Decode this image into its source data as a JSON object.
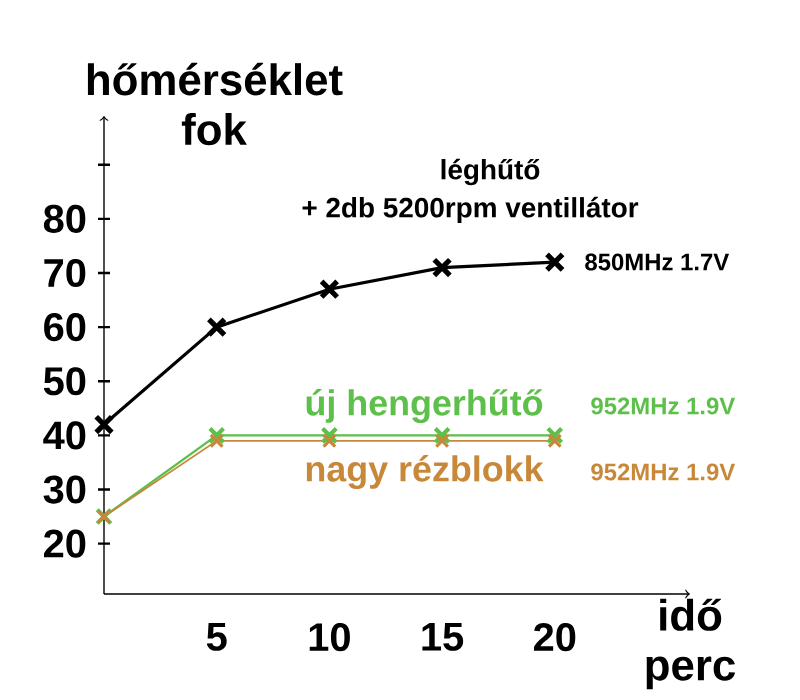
{
  "chart_data": {
    "type": "line",
    "xlabel": "idő perc",
    "ylabel": "hőmérséklet fok",
    "x": [
      0,
      5,
      10,
      15,
      20
    ],
    "xlim": [
      0,
      26
    ],
    "xticks": [
      5,
      10,
      15,
      20
    ],
    "ylim": [
      10.7,
      99
    ],
    "yticks": [
      20,
      30,
      40,
      50,
      60,
      70,
      80,
      {
        "value": 90,
        "label": null
      }
    ],
    "marker": "cross",
    "line_style": "solid",
    "legend": false,
    "series": [
      {
        "name": "léghűtő",
        "color": "#000000",
        "values": [
          42,
          60,
          67,
          71,
          72
        ]
      },
      {
        "name": "új hengerhűtő",
        "color": "#5cc04a",
        "values": [
          25,
          40,
          40,
          40,
          40
        ]
      },
      {
        "name": "nagy rézblokk",
        "color": "#c8883a",
        "values": [
          25,
          39,
          39,
          39,
          39
        ]
      }
    ],
    "annotations": [
      "+ 2db 5200rpm ventillátor",
      "850MHz 1.7V",
      "952MHz 1.9V",
      "952MHz 1.9V"
    ]
  }
}
